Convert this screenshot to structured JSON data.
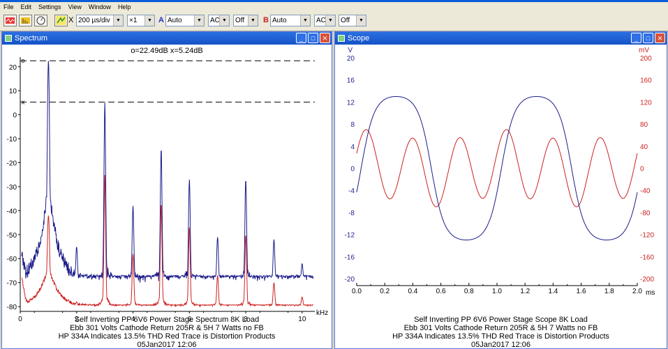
{
  "menu": [
    "File",
    "Edit",
    "Settings",
    "View",
    "Window",
    "Help"
  ],
  "toolbar": {
    "x_symbol": "X",
    "timebase": "200 µs/div",
    "xmult": "×1",
    "ch_a_label": "A",
    "ch_a_range": "Auto",
    "ch_a_coupling": "AC",
    "ch_a_off": "Off",
    "ch_b_label": "B",
    "ch_b_range": "Auto",
    "ch_b_coupling": "AC",
    "ch_b_off": "Off"
  },
  "spectrum": {
    "window_title": "Spectrum",
    "marker_readout": "o=22.49dB  x=5.24dB",
    "x_unit": "kHz",
    "caption": [
      "Self Inverting PP 6V6 Power Stage Spectrum 8K Load",
      "Ebb 301 Volts Cathode Return 205R & 5H 7 Watts no FB",
      "HP 334A Indicates 13.5% THD Red Trace is Distortion Products",
      "05Jan2017  12:06"
    ]
  },
  "scope": {
    "window_title": "Scope",
    "left_unit": "V",
    "right_unit": "mV",
    "x_unit": "ms",
    "caption": [
      "Self Inverting PP 6V6 Power Stage Scope 8K Load",
      "Ebb 301 Volts Cathode Return 205R & 5H 7 Watts no FB",
      "HP 334A Indicates 13.5% THD Red Trace is Distortion Products",
      "05Jan2017  12:06"
    ]
  },
  "chart_data": [
    {
      "type": "line",
      "name": "spectrum",
      "x_ticks": [
        0,
        2,
        4,
        6,
        8,
        10
      ],
      "y_ticks": [
        20,
        10,
        0,
        -10,
        -20,
        -30,
        -40,
        -50,
        -60,
        -70,
        -80
      ],
      "xlim": [
        0,
        10.4
      ],
      "ylim": [
        -82,
        24
      ],
      "grid": false,
      "markers": [
        {
          "label": "o",
          "value": 22.49
        },
        {
          "label": "x",
          "value": 5.24
        }
      ],
      "series": [
        {
          "color": "#1c1c8c",
          "peaks": [
            [
              1,
              22.5
            ],
            [
              2,
              -55
            ],
            [
              3,
              5.2
            ],
            [
              4,
              -38
            ],
            [
              5,
              -14
            ],
            [
              6,
              -27
            ],
            [
              7,
              -51
            ],
            [
              8,
              -27
            ],
            [
              9,
              -52
            ],
            [
              10,
              -62
            ]
          ],
          "floor": -70
        },
        {
          "color": "#cc2222",
          "peaks": [
            [
              1,
              -42
            ],
            [
              2,
              -78
            ],
            [
              3,
              -25
            ],
            [
              4,
              -58
            ],
            [
              5,
              -37
            ],
            [
              6,
              -47
            ],
            [
              7,
              -67
            ],
            [
              8,
              -50
            ],
            [
              9,
              -70
            ],
            [
              10,
              -76
            ]
          ],
          "floor": -80
        }
      ]
    },
    {
      "type": "line",
      "name": "scope",
      "x_ticks": [
        0.0,
        0.2,
        0.4,
        0.6,
        0.8,
        1.0,
        1.2,
        1.4,
        1.6,
        1.8,
        2.0
      ],
      "y_ticks_left": [
        20,
        16,
        12,
        8,
        4,
        0,
        -4,
        -8,
        -12,
        -16,
        -20
      ],
      "y_ticks_right": [
        200,
        160,
        120,
        80,
        40,
        0,
        -40,
        -80,
        -120,
        -160,
        -200
      ],
      "xlim": [
        0,
        2.0
      ],
      "ylim_left": [
        -20,
        20
      ],
      "ylim_right": [
        -200,
        200
      ],
      "grid": false,
      "series": [
        {
          "axis": "left",
          "color": "#1c1c8c",
          "frequency_khz": 1.0,
          "amplitude_v": 13
        },
        {
          "axis": "right",
          "color": "#cc2222",
          "frequency_khz": 3.0,
          "amplitude_mv": 60
        }
      ]
    }
  ]
}
